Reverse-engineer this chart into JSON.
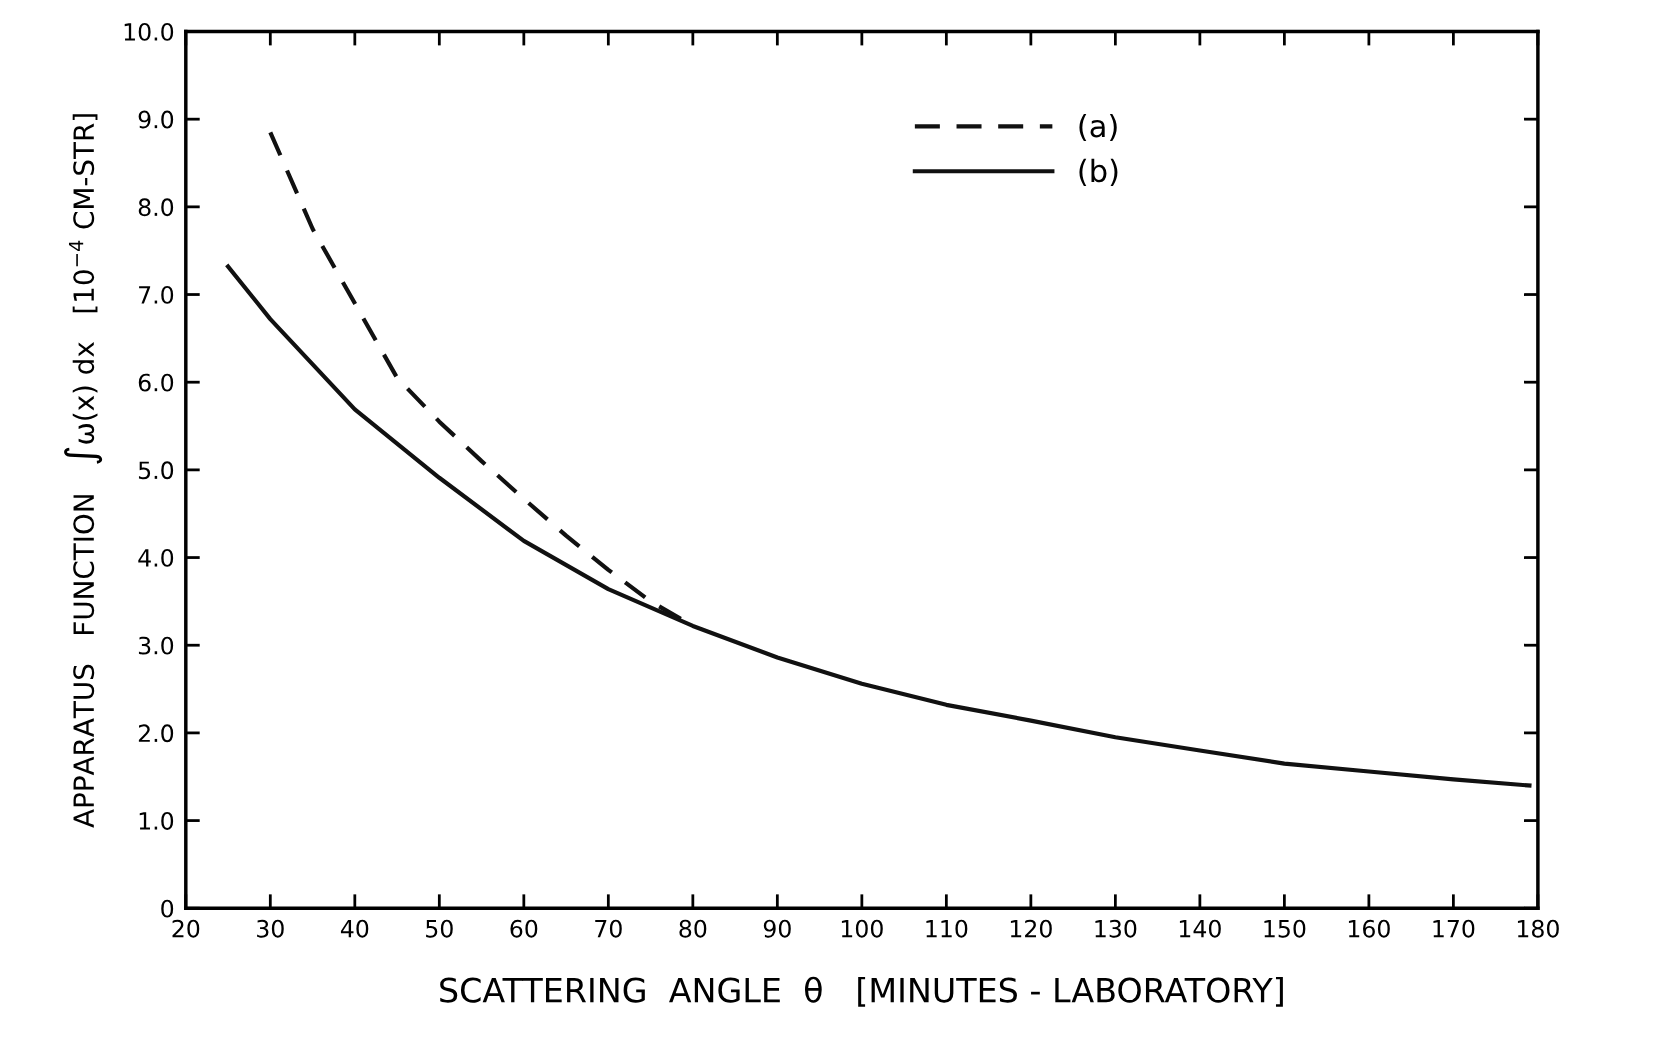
{
  "chart_data": {
    "type": "line",
    "xlabel": "SCATTERING  ANGLE  θ   [MINUTES - LABORATORY]",
    "ylabel": "APPARATUS   FUNCTION   ∫ω(x) dx   [10$^{−4}$ CM-STR]",
    "series": [
      {
        "name": "(a)",
        "color": "#111111",
        "line_style": "dashed",
        "x": [
          30,
          35,
          40,
          45,
          50,
          55,
          60,
          65,
          70,
          75,
          80
        ],
        "values": [
          8.85,
          7.75,
          6.9,
          6.05,
          5.55,
          5.1,
          4.67,
          4.25,
          3.86,
          3.5,
          3.22
        ]
      },
      {
        "name": "(b)",
        "color": "#111111",
        "line_style": "solid",
        "x": [
          25,
          30,
          40,
          50,
          60,
          70,
          80,
          90,
          100,
          110,
          120,
          130,
          140,
          150,
          160,
          170,
          179
        ],
        "values": [
          7.32,
          6.72,
          5.69,
          4.91,
          4.19,
          3.64,
          3.22,
          2.86,
          2.56,
          2.32,
          2.14,
          1.95,
          1.8,
          1.65,
          1.56,
          1.47,
          1.4
        ]
      }
    ],
    "xlim": [
      20,
      180
    ],
    "ylim": [
      0,
      10
    ],
    "xticks": [
      20,
      30,
      40,
      50,
      60,
      70,
      80,
      90,
      100,
      110,
      120,
      130,
      140,
      150,
      160,
      170,
      180
    ],
    "yticks": [
      0,
      {
        "value": 1,
        "label": "1.0"
      },
      {
        "value": 2,
        "label": "2.0"
      },
      {
        "value": 3,
        "label": "3.0"
      },
      {
        "value": 4,
        "label": "4.0"
      },
      {
        "value": 5,
        "label": "5.0"
      },
      {
        "value": 6,
        "label": "6.0"
      },
      {
        "value": 7,
        "label": "7.0"
      },
      {
        "value": 8,
        "label": "8.0"
      },
      {
        "value": 9,
        "label": "9.0"
      },
      {
        "value": 10,
        "label": "10.0"
      }
    ],
    "grid": false,
    "legend": "top right"
  }
}
